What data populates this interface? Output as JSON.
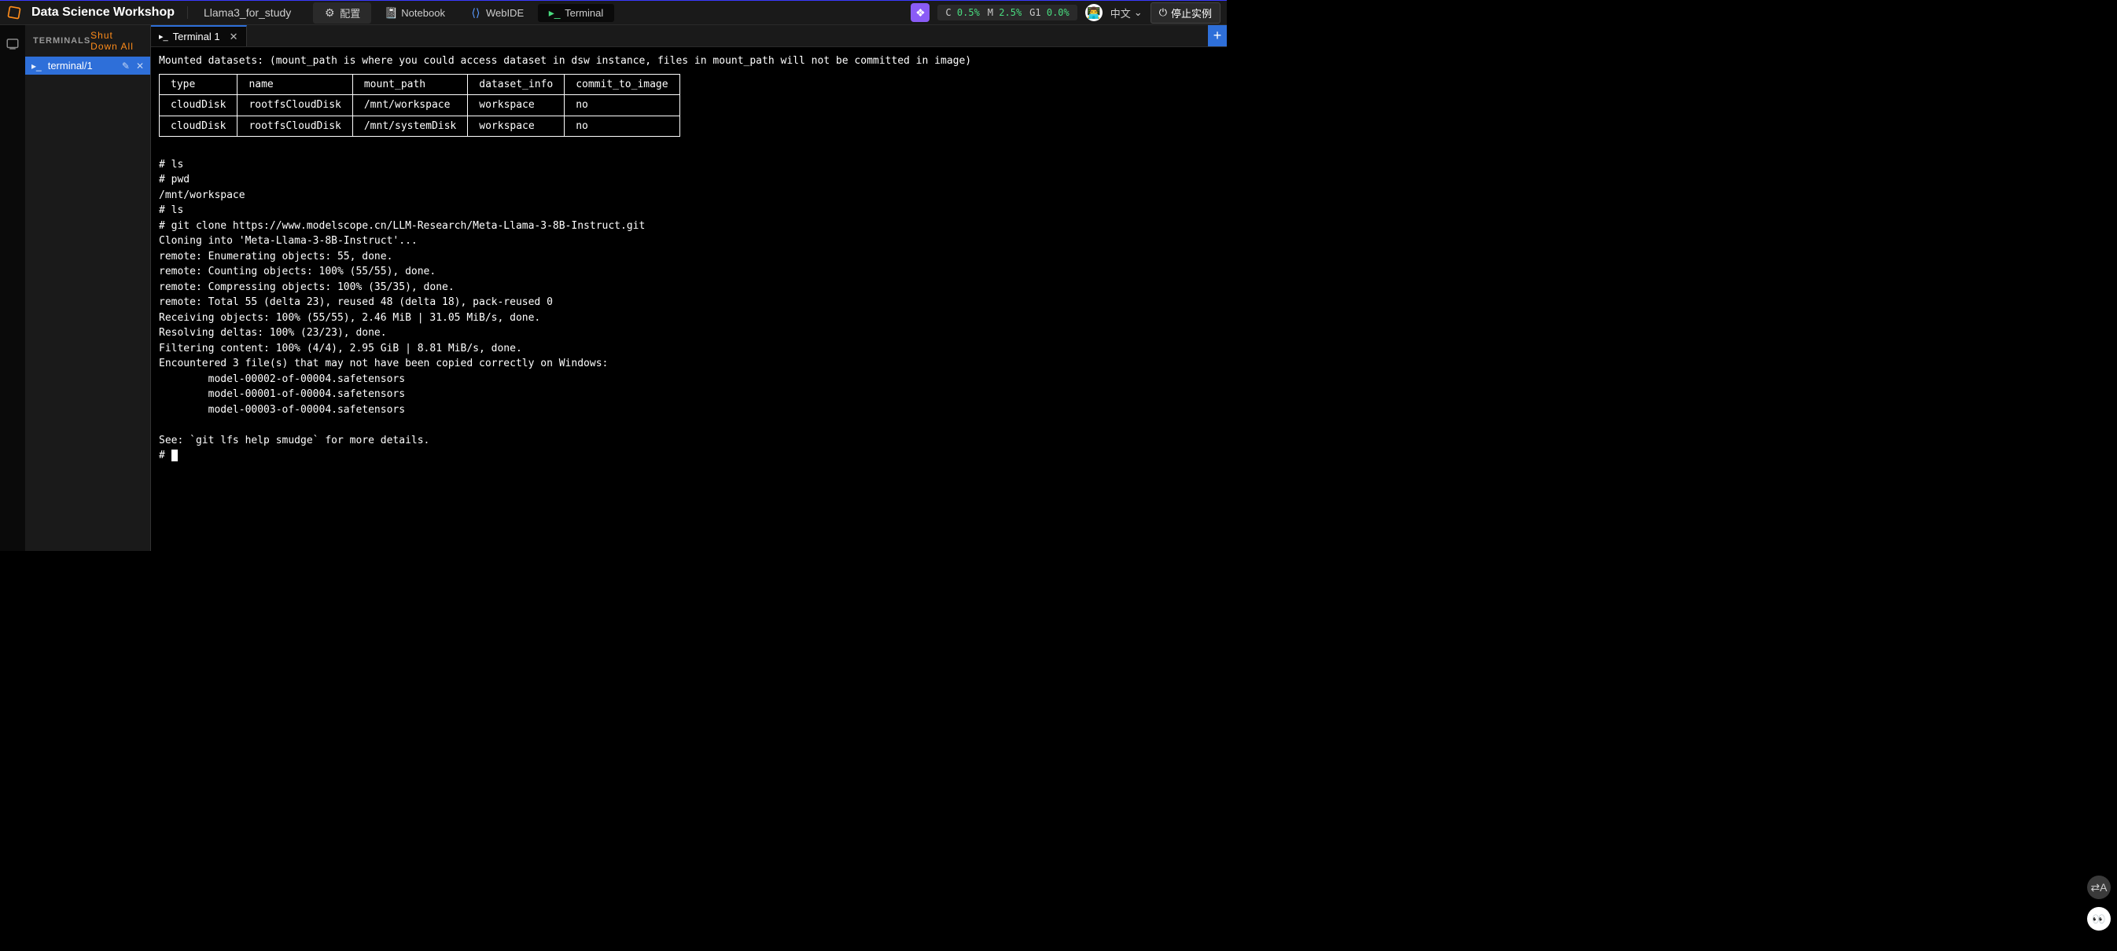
{
  "header": {
    "app_title": "Data Science Workshop",
    "project_name": "Llama3_for_study",
    "tabs": {
      "config": "配置",
      "notebook": "Notebook",
      "webide": "WebIDE",
      "terminal": "Terminal"
    },
    "stats": {
      "c_label": "C",
      "c_value": "0.5%",
      "m_label": "M",
      "m_value": "2.5%",
      "g_label": "G1",
      "g_value": "0.0%"
    },
    "language": "中文",
    "stop_instance": "停止实例"
  },
  "sidebar": {
    "title": "TERMINALS",
    "shutdown_all": "Shut Down All",
    "items": [
      {
        "label": "terminal/1"
      }
    ]
  },
  "tabstrip": {
    "active_tab": "Terminal 1"
  },
  "terminal": {
    "intro_line": "Mounted datasets: (mount_path is where you could access dataset in dsw instance, files in mount_path will not be committed in image)",
    "table": {
      "headers": [
        "type",
        "name",
        "mount_path",
        "dataset_info",
        "commit_to_image"
      ],
      "rows": [
        [
          "cloudDisk",
          "rootfsCloudDisk",
          "/mnt/workspace",
          "workspace",
          "no"
        ],
        [
          "cloudDisk",
          "rootfsCloudDisk",
          "/mnt/systemDisk",
          "workspace",
          "no"
        ]
      ]
    },
    "lines": [
      "",
      "# ls",
      "# pwd",
      "/mnt/workspace",
      "# ls",
      "# git clone https://www.modelscope.cn/LLM-Research/Meta-Llama-3-8B-Instruct.git",
      "Cloning into 'Meta-Llama-3-8B-Instruct'...",
      "remote: Enumerating objects: 55, done.",
      "remote: Counting objects: 100% (55/55), done.",
      "remote: Compressing objects: 100% (35/35), done.",
      "remote: Total 55 (delta 23), reused 48 (delta 18), pack-reused 0",
      "Receiving objects: 100% (55/55), 2.46 MiB | 31.05 MiB/s, done.",
      "Resolving deltas: 100% (23/23), done.",
      "Filtering content: 100% (4/4), 2.95 GiB | 8.81 MiB/s, done.",
      "Encountered 3 file(s) that may not have been copied correctly on Windows:",
      "        model-00002-of-00004.safetensors",
      "        model-00001-of-00004.safetensors",
      "        model-00003-of-00004.safetensors",
      "",
      "See: `git lfs help smudge` for more details."
    ],
    "prompt": "# "
  },
  "colors": {
    "accent_orange": "#ff8c1a",
    "accent_blue": "#2e6fd9",
    "green": "#4ade80",
    "purple": "#8a5cf6",
    "bg_main": "#000000",
    "bg_panel": "#1a1a1a",
    "bg_chip": "#2a2a2a",
    "text": "#ffffff"
  }
}
